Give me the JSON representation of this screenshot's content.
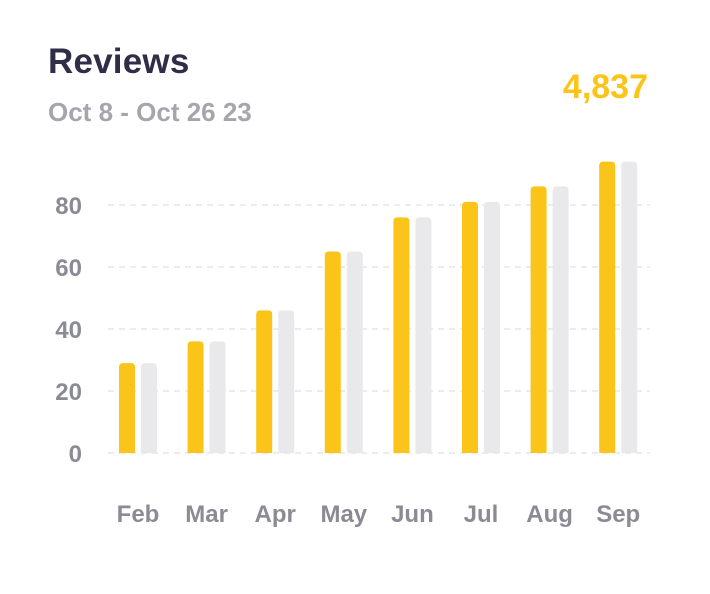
{
  "header": {
    "title": "Reviews",
    "date_range": "Oct 8 - Oct 26 23",
    "total": "4,837"
  },
  "colors": {
    "primary": "#fac418",
    "secondary": "#e9e9ec",
    "title": "#2e2e48",
    "muted": "#a5a5ad",
    "tick": "#8b8b95",
    "grid": "#e6e6ea"
  },
  "chart_data": {
    "type": "bar",
    "title": "Reviews",
    "subtitle": "Oct 8 - Oct 26 23",
    "categories": [
      "Feb",
      "Mar",
      "Apr",
      "May",
      "Jun",
      "Jul",
      "Aug",
      "Sep"
    ],
    "series": [
      {
        "values": [
          29,
          36,
          46,
          65,
          76,
          81,
          86,
          94
        ]
      },
      {
        "values": [
          29,
          36,
          46,
          65,
          76,
          81,
          86,
          94
        ]
      }
    ],
    "yticks": [
      0,
      20,
      40,
      60,
      80
    ],
    "ylim": [
      0,
      100
    ],
    "grid": true,
    "legend": "none"
  }
}
